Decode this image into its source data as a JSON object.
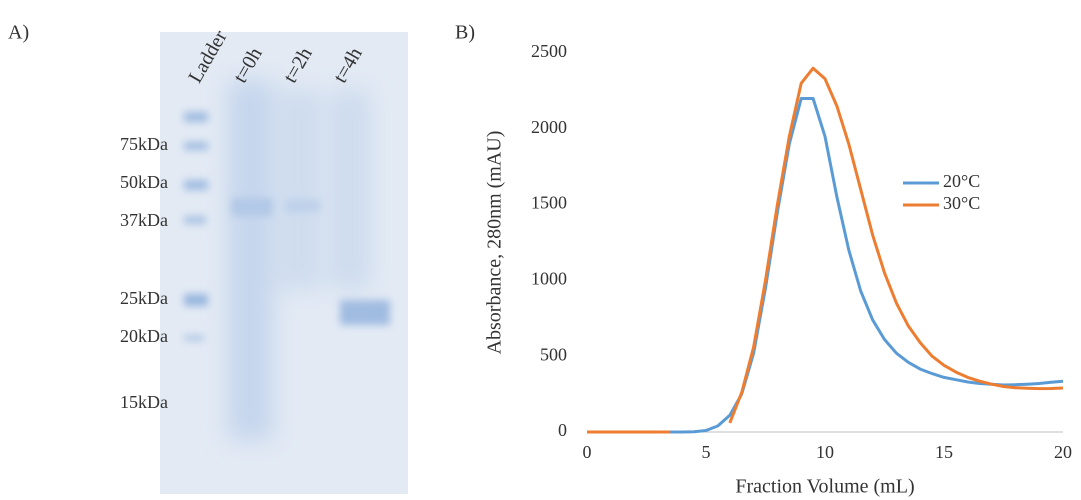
{
  "panel_a": {
    "label": "A)",
    "lanes": [
      "Ladder",
      "t=0h",
      "t=2h",
      "t=4h"
    ],
    "markers": [
      "75kDa",
      "50kDa",
      "37kDa",
      "25kDa",
      "20kDa",
      "15kDa"
    ]
  },
  "chart_data": {
    "type": "line",
    "panel_label": "B)",
    "x_label": "Fraction Volume (mL)",
    "y_label": "Absorbance, 280nm (mAU)",
    "x": [
      0,
      0.5,
      1,
      1.5,
      2,
      2.5,
      3,
      3.5,
      4,
      4.5,
      5,
      5.5,
      6,
      6.5,
      7,
      7.5,
      8,
      8.5,
      9,
      9.5,
      10,
      10.5,
      11,
      11.5,
      12,
      12.5,
      13,
      13.5,
      14,
      14.5,
      15,
      15.5,
      16,
      16.5,
      17,
      17.5,
      18,
      18.5,
      19,
      19.5,
      20
    ],
    "series": [
      {
        "name": "20°C",
        "color": "#5b9bd5",
        "values": [
          0,
          0,
          0,
          0,
          0,
          0,
          0,
          0,
          0,
          2,
          10,
          40,
          110,
          250,
          520,
          950,
          1450,
          1900,
          2200,
          2200,
          1950,
          1550,
          1200,
          930,
          740,
          610,
          520,
          460,
          415,
          385,
          360,
          345,
          330,
          320,
          315,
          310,
          312,
          315,
          320,
          328,
          335
        ]
      },
      {
        "name": "30°C",
        "color": "#ed7d31",
        "values": [
          0,
          0,
          0,
          0,
          0,
          0,
          0,
          0,
          null,
          null,
          null,
          null,
          60,
          260,
          560,
          1000,
          1500,
          1950,
          2300,
          2400,
          2330,
          2150,
          1900,
          1600,
          1300,
          1050,
          850,
          700,
          590,
          500,
          440,
          395,
          360,
          335,
          315,
          300,
          292,
          288,
          286,
          287,
          290
        ]
      }
    ],
    "xlim": [
      0,
      20
    ],
    "xticks": [
      0,
      5,
      10,
      15,
      20
    ],
    "ylim": [
      0,
      2500
    ],
    "yticks": [
      0,
      500,
      1000,
      1500,
      2000,
      2500
    ],
    "grid": false,
    "legend": "right"
  }
}
